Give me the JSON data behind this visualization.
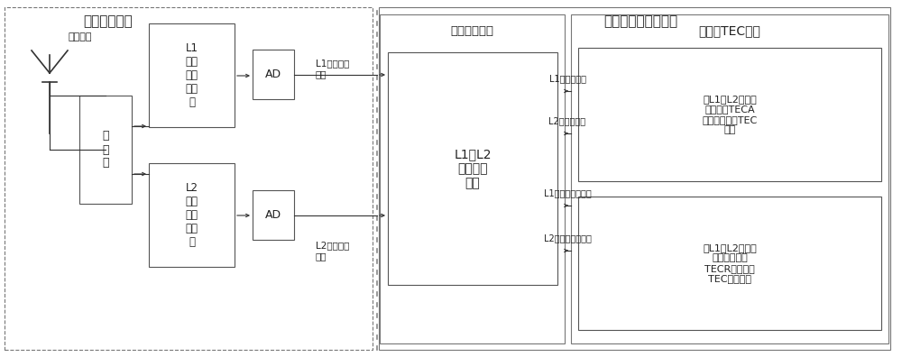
{
  "bg_color": "#ffffff",
  "box_fc": "#ffffff",
  "border_color": "#555555",
  "text_color": "#222222",
  "arrow_color": "#333333",
  "title_rf": "射频信号处理",
  "title_bb": "基带信号与信息处理",
  "title_track": "信号跟踪处理",
  "title_tec": "电离层TEC解算",
  "antenna_label": "双频天线",
  "splitter_label": "功\n分\n器",
  "l1_filter_label": "L1\n滤波\n放大\n下变\n频",
  "l2_filter_label": "L2\n滤波\n放大\n下变\n频",
  "ad1_label": "AD",
  "ad2_label": "AD",
  "l1_sig_label": "L1数字中频\n信号",
  "l2_sig_label": "L2数字中频\n信号",
  "tracker_label": "L1与L2\n信号跟踪\n处理",
  "teca_label": "由L1和L2伪距观\n测值解算TECA\n（电离层绝对TEC\n值）",
  "tecr_label": "由L1和L2载波相\n位观测值解算\nTECR（电离层\nTEC变化值）",
  "arrow1_label": "L1伪距观测值",
  "arrow2_label": "L2伪距观测值",
  "arrow3_label": "L1载波相位观测值",
  "arrow4_label": "L2载波相位观测值",
  "figw": 10.0,
  "figh": 3.96,
  "dpi": 100
}
